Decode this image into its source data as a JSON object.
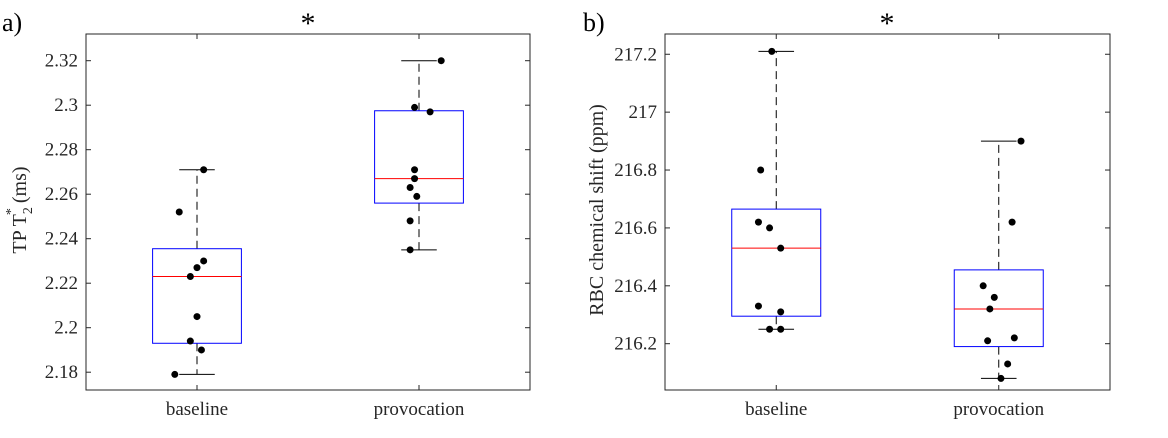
{
  "figure": {
    "panels": [
      "a",
      "b"
    ]
  },
  "chart_data": [
    {
      "type": "box",
      "panel_label": "a)",
      "significance_marker": "*",
      "ylabel": {
        "main": "TP T",
        "subscript": "2",
        "superscript": "*",
        "units": " (ms)"
      },
      "ylim": [
        2.172,
        2.332
      ],
      "yticks": [
        2.18,
        2.2,
        2.22,
        2.24,
        2.26,
        2.28,
        2.3,
        2.32
      ],
      "ytick_labels": [
        "2.18",
        "2.2",
        "2.22",
        "2.24",
        "2.26",
        "2.28",
        "2.3",
        "2.32"
      ],
      "categories": [
        "baseline",
        "provocation"
      ],
      "colors": {
        "box": "#0000ff",
        "median": "#ff0000",
        "whisker": "#000000",
        "point": "#000000"
      },
      "boxes": [
        {
          "category": "baseline",
          "whisker_low": 2.179,
          "q1": 2.193,
          "median": 2.223,
          "q3": 2.2355,
          "whisker_high": 2.271,
          "points": [
            {
              "jitter": -0.08,
              "value": 2.252
            },
            {
              "jitter": 0.03,
              "value": 2.271
            },
            {
              "jitter": 0.03,
              "value": 2.23
            },
            {
              "jitter": 0.0,
              "value": 2.227
            },
            {
              "jitter": -0.03,
              "value": 2.223
            },
            {
              "jitter": 0.0,
              "value": 2.205
            },
            {
              "jitter": -0.03,
              "value": 2.194
            },
            {
              "jitter": 0.02,
              "value": 2.19
            },
            {
              "jitter": -0.1,
              "value": 2.179
            }
          ]
        },
        {
          "category": "provocation",
          "whisker_low": 2.235,
          "q1": 2.256,
          "median": 2.267,
          "q3": 2.2975,
          "whisker_high": 2.32,
          "points": [
            {
              "jitter": 0.1,
              "value": 2.32
            },
            {
              "jitter": -0.02,
              "value": 2.299
            },
            {
              "jitter": 0.05,
              "value": 2.297
            },
            {
              "jitter": -0.02,
              "value": 2.271
            },
            {
              "jitter": -0.02,
              "value": 2.267
            },
            {
              "jitter": -0.04,
              "value": 2.263
            },
            {
              "jitter": -0.01,
              "value": 2.259
            },
            {
              "jitter": -0.04,
              "value": 2.248
            },
            {
              "jitter": -0.04,
              "value": 2.235
            }
          ]
        }
      ]
    },
    {
      "type": "box",
      "panel_label": "b)",
      "significance_marker": "*",
      "ylabel": {
        "main": "RBC chemical shift (ppm)",
        "subscript": "",
        "superscript": "",
        "units": ""
      },
      "ylim": [
        216.04,
        217.27
      ],
      "yticks": [
        216.2,
        216.4,
        216.6,
        216.8,
        217.0,
        217.2
      ],
      "ytick_labels": [
        "216.2",
        "216.4",
        "216.6",
        "216.8",
        "217",
        "217.2"
      ],
      "categories": [
        "baseline",
        "provocation"
      ],
      "colors": {
        "box": "#0000ff",
        "median": "#ff0000",
        "whisker": "#000000",
        "point": "#000000"
      },
      "boxes": [
        {
          "category": "baseline",
          "whisker_low": 216.25,
          "q1": 216.295,
          "median": 216.53,
          "q3": 216.665,
          "whisker_high": 217.21,
          "points": [
            {
              "jitter": -0.02,
              "value": 217.21
            },
            {
              "jitter": -0.07,
              "value": 216.8
            },
            {
              "jitter": -0.08,
              "value": 216.62
            },
            {
              "jitter": -0.03,
              "value": 216.6
            },
            {
              "jitter": 0.02,
              "value": 216.53
            },
            {
              "jitter": -0.08,
              "value": 216.33
            },
            {
              "jitter": 0.02,
              "value": 216.31
            },
            {
              "jitter": -0.03,
              "value": 216.25
            },
            {
              "jitter": 0.02,
              "value": 216.25
            }
          ]
        },
        {
          "category": "provocation",
          "whisker_low": 216.08,
          "q1": 216.19,
          "median": 216.32,
          "q3": 216.455,
          "whisker_high": 216.9,
          "points": [
            {
              "jitter": 0.1,
              "value": 216.9
            },
            {
              "jitter": 0.06,
              "value": 216.62
            },
            {
              "jitter": -0.07,
              "value": 216.4
            },
            {
              "jitter": -0.02,
              "value": 216.36
            },
            {
              "jitter": -0.04,
              "value": 216.32
            },
            {
              "jitter": 0.07,
              "value": 216.22
            },
            {
              "jitter": -0.05,
              "value": 216.21
            },
            {
              "jitter": 0.04,
              "value": 216.13
            },
            {
              "jitter": 0.01,
              "value": 216.08
            }
          ]
        }
      ]
    }
  ]
}
